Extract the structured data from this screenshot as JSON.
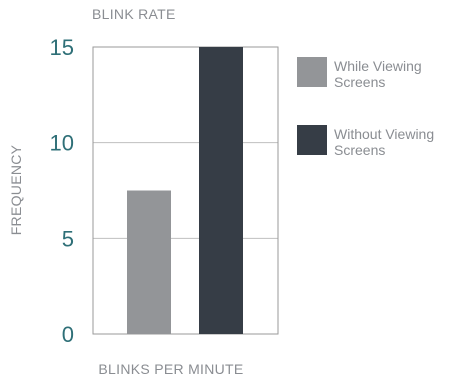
{
  "chart_data": {
    "type": "bar",
    "title": "BLINK RATE",
    "xlabel": "BLINKS PER MINUTE",
    "ylabel": "FREQUENCY",
    "ylim": [
      0,
      15
    ],
    "yticks": [
      0,
      5,
      10,
      15
    ],
    "grid": true,
    "legend_position": "right",
    "series": [
      {
        "name": "While Viewing Screens",
        "value": 7.5,
        "color": "#939598",
        "legend_lines": [
          "While Viewing",
          "Screens"
        ]
      },
      {
        "name": "Without Viewing Screens",
        "value": 15,
        "color": "#363d46",
        "legend_lines": [
          "Without Viewing",
          "Screens"
        ]
      }
    ]
  }
}
